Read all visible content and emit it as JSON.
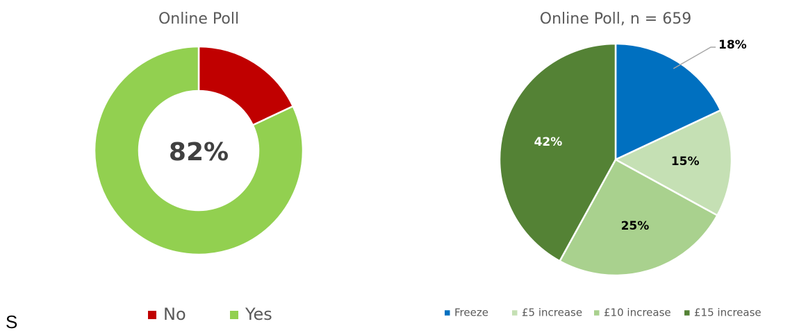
{
  "chart_data": [
    {
      "type": "donut",
      "title": "Online Poll",
      "categories": [
        "No",
        "Yes"
      ],
      "values": [
        18,
        82
      ],
      "colors": [
        "#c00000",
        "#92d050"
      ],
      "center_label": "82%",
      "legend": "bottom"
    },
    {
      "type": "pie",
      "title": "Online Poll, n = 659",
      "categories": [
        "Freeze",
        "£5 increase",
        "£10 increase",
        "£15 increase"
      ],
      "values": [
        18,
        15,
        25,
        42
      ],
      "value_labels": [
        "18%",
        "15%",
        "25%",
        "42%"
      ],
      "colors": [
        "#0070c0",
        "#c5e0b4",
        "#a9d18e",
        "#548235"
      ],
      "legend": "bottom"
    }
  ],
  "footer_text": "S"
}
